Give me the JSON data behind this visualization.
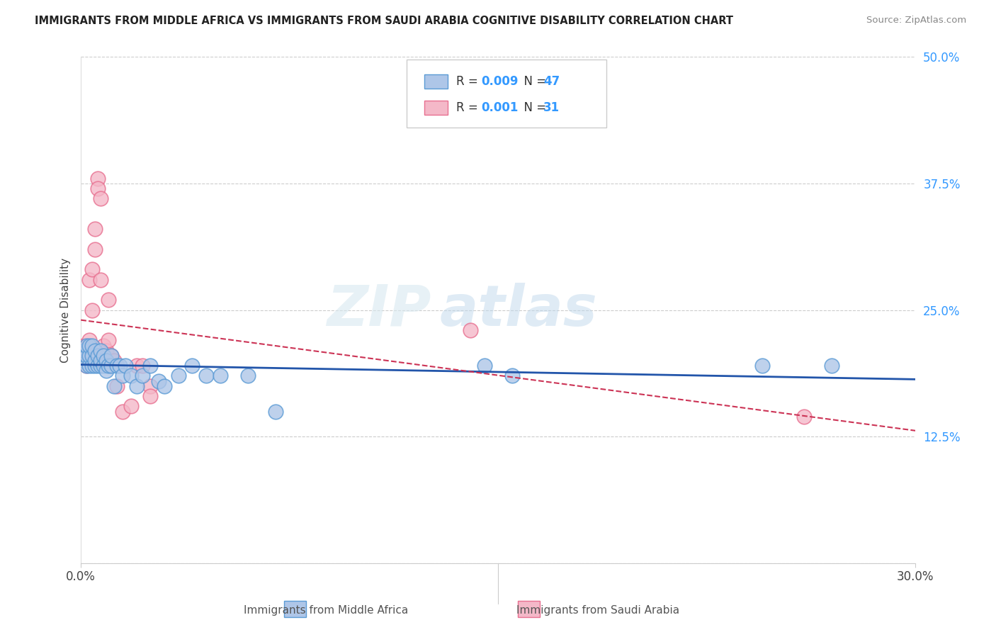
{
  "title": "IMMIGRANTS FROM MIDDLE AFRICA VS IMMIGRANTS FROM SAUDI ARABIA COGNITIVE DISABILITY CORRELATION CHART",
  "source": "Source: ZipAtlas.com",
  "ylabel": "Cognitive Disability",
  "y_ticks": [
    0.0,
    0.125,
    0.25,
    0.375,
    0.5
  ],
  "y_tick_labels": [
    "",
    "12.5%",
    "25.0%",
    "37.5%",
    "50.0%"
  ],
  "xmin": 0.0,
  "xmax": 0.3,
  "ymin": 0.0,
  "ymax": 0.5,
  "legend_r1": "R = 0.009",
  "legend_n1": "N = 47",
  "legend_r2": "R = 0.001",
  "legend_n2": "N = 31",
  "legend_label1": "Immigrants from Middle Africa",
  "legend_label2": "Immigrants from Saudi Arabia",
  "blue_color": "#aec6e8",
  "blue_edge": "#5b9bd5",
  "pink_color": "#f4b8c8",
  "pink_edge": "#e87090",
  "trendline_blue": "#2255aa",
  "trendline_pink": "#cc3355",
  "blue_x": [
    0.001,
    0.001,
    0.002,
    0.002,
    0.002,
    0.003,
    0.003,
    0.003,
    0.004,
    0.004,
    0.004,
    0.005,
    0.005,
    0.005,
    0.006,
    0.006,
    0.007,
    0.007,
    0.007,
    0.008,
    0.008,
    0.009,
    0.009,
    0.01,
    0.011,
    0.011,
    0.012,
    0.013,
    0.014,
    0.015,
    0.016,
    0.018,
    0.02,
    0.022,
    0.025,
    0.028,
    0.03,
    0.035,
    0.04,
    0.045,
    0.05,
    0.06,
    0.07,
    0.145,
    0.155,
    0.245,
    0.27
  ],
  "blue_y": [
    0.2,
    0.21,
    0.195,
    0.205,
    0.215,
    0.195,
    0.205,
    0.215,
    0.195,
    0.205,
    0.215,
    0.195,
    0.2,
    0.21,
    0.195,
    0.205,
    0.195,
    0.2,
    0.21,
    0.195,
    0.205,
    0.19,
    0.2,
    0.195,
    0.195,
    0.205,
    0.175,
    0.195,
    0.195,
    0.185,
    0.195,
    0.185,
    0.175,
    0.185,
    0.195,
    0.18,
    0.175,
    0.185,
    0.195,
    0.185,
    0.185,
    0.185,
    0.15,
    0.195,
    0.185,
    0.195,
    0.195
  ],
  "pink_x": [
    0.001,
    0.001,
    0.001,
    0.002,
    0.002,
    0.002,
    0.003,
    0.003,
    0.004,
    0.004,
    0.005,
    0.005,
    0.006,
    0.006,
    0.007,
    0.007,
    0.008,
    0.009,
    0.01,
    0.01,
    0.011,
    0.012,
    0.013,
    0.015,
    0.018,
    0.02,
    0.022,
    0.025,
    0.025,
    0.14,
    0.26
  ],
  "pink_y": [
    0.21,
    0.2,
    0.215,
    0.215,
    0.205,
    0.195,
    0.28,
    0.22,
    0.29,
    0.25,
    0.33,
    0.31,
    0.38,
    0.37,
    0.36,
    0.28,
    0.215,
    0.21,
    0.22,
    0.26,
    0.205,
    0.2,
    0.175,
    0.15,
    0.155,
    0.195,
    0.195,
    0.175,
    0.165,
    0.23,
    0.145
  ],
  "watermark_zip": "ZIP",
  "watermark_atlas": "atlas",
  "background_color": "#ffffff",
  "grid_color": "#cccccc"
}
